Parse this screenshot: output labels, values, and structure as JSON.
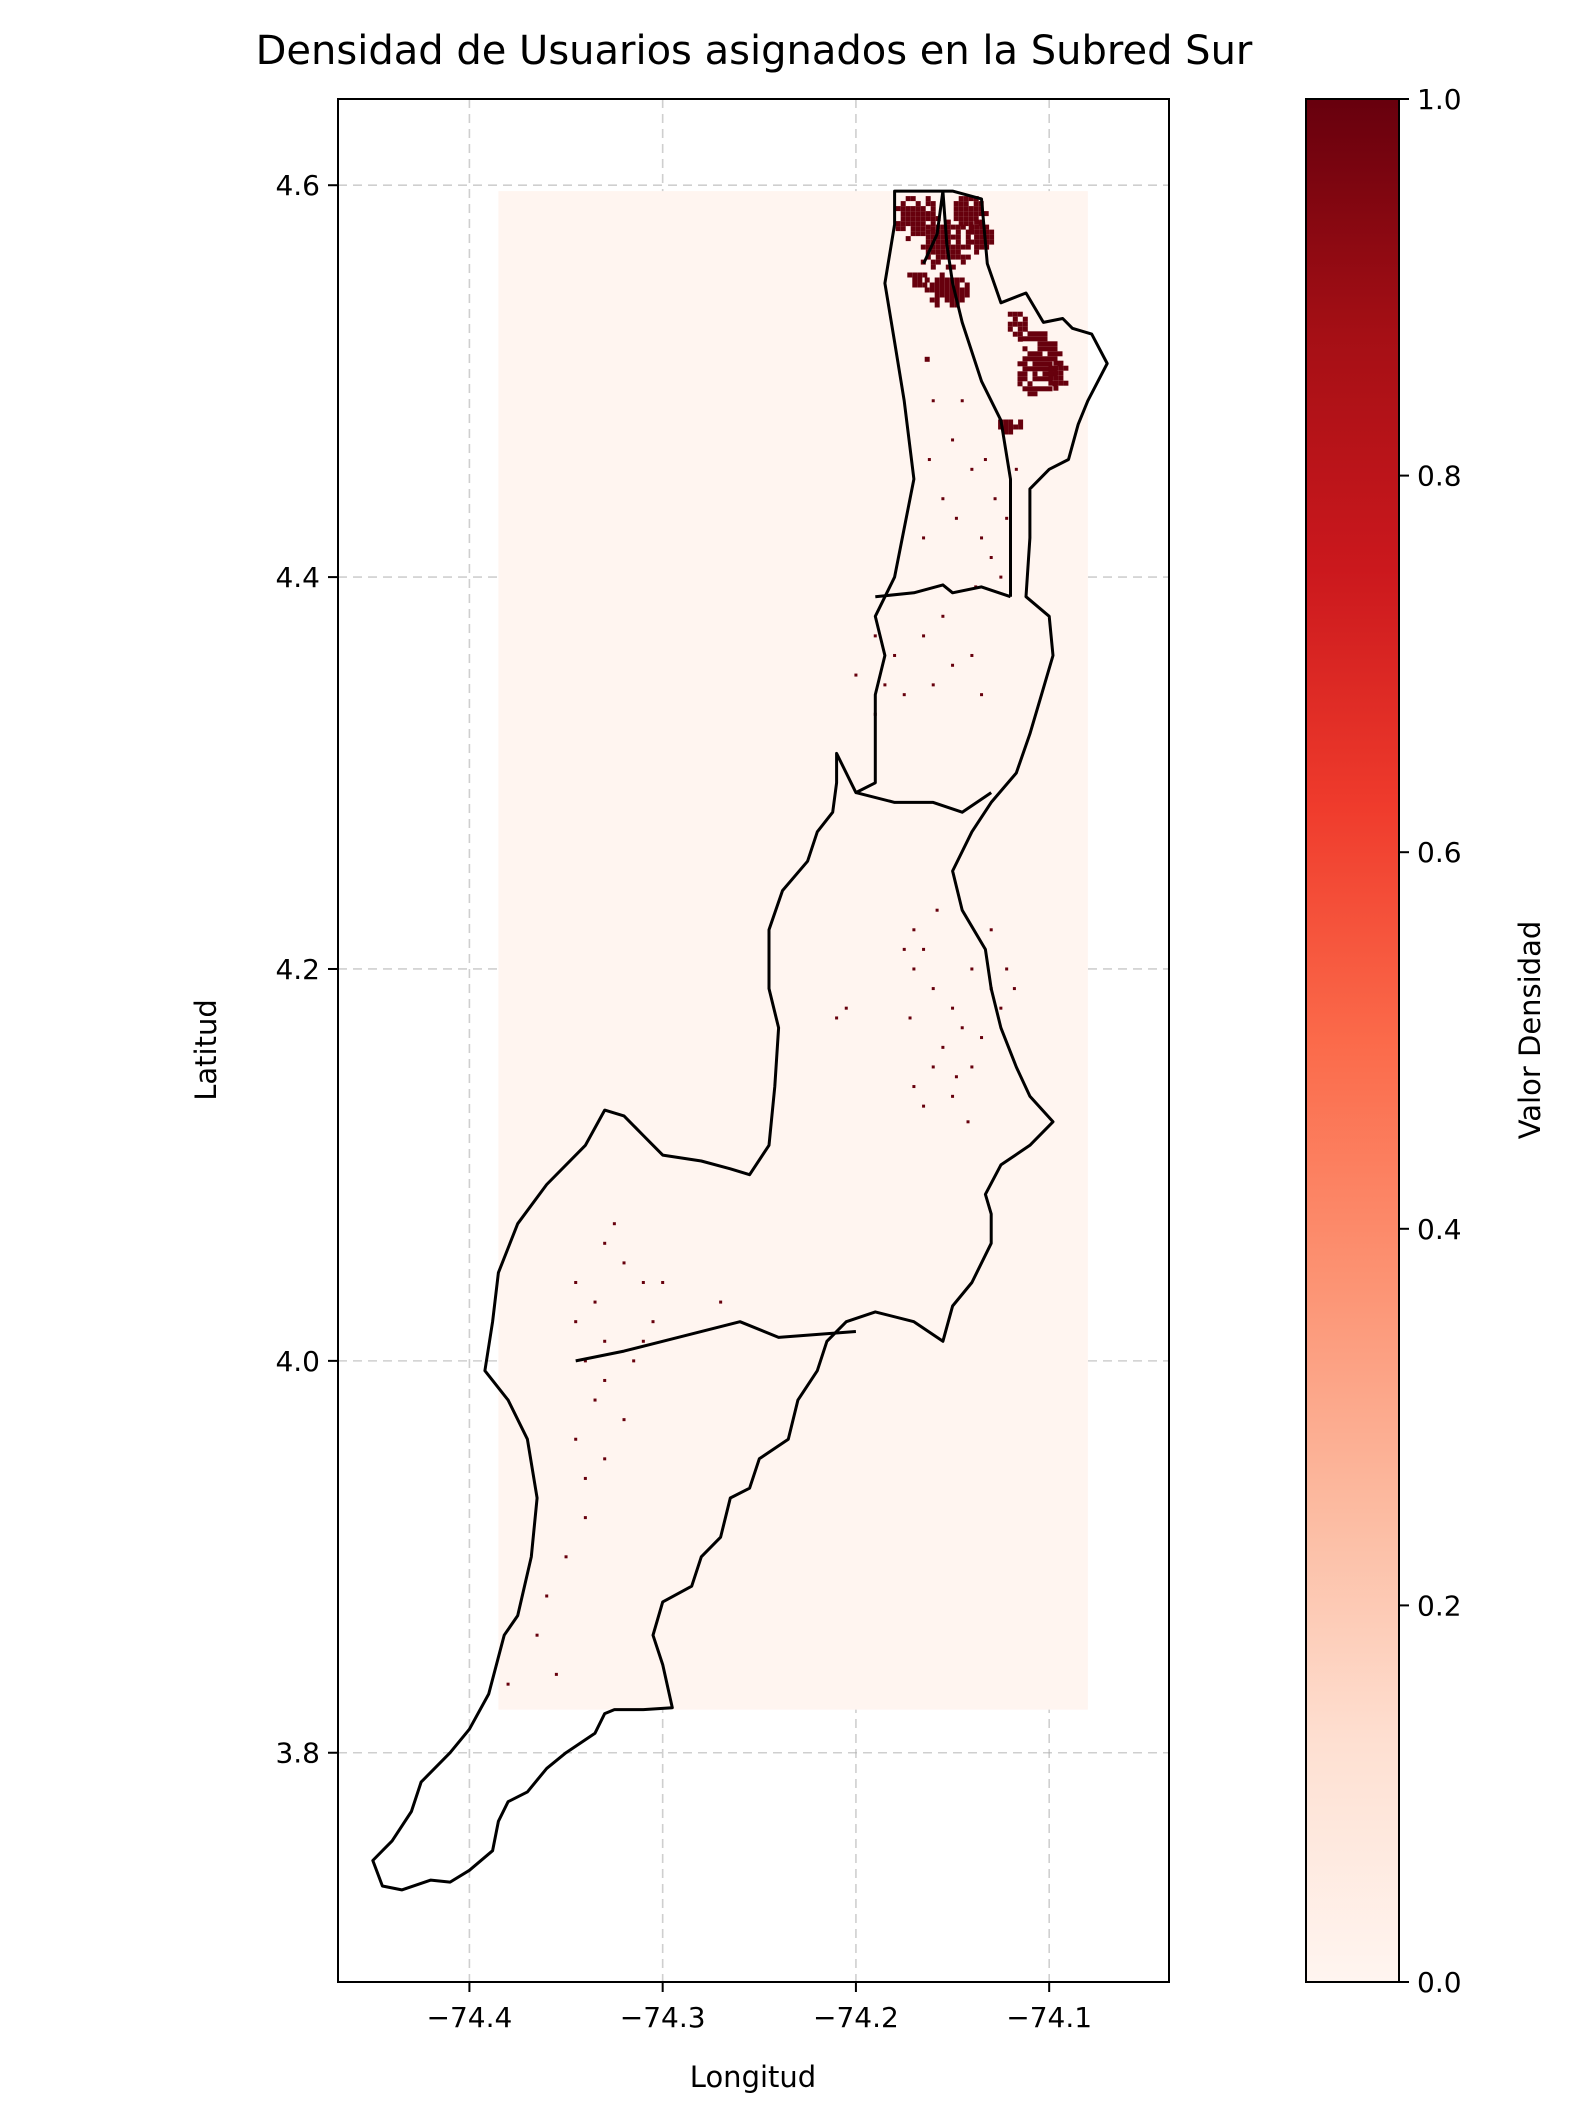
{
  "chart_data": {
    "type": "heatmap",
    "title": "Densidad de Usuarios asignados en la Subred Sur",
    "xlabel": "Longitud",
    "ylabel": "Latitud",
    "xlim": [
      -74.468,
      -74.038
    ],
    "ylim": [
      3.683,
      4.644
    ],
    "xticks": [
      -74.4,
      -74.3,
      -74.2,
      -74.1
    ],
    "xtick_labels": [
      "−74.4",
      "−74.3",
      "−74.2",
      "−74.1"
    ],
    "yticks": [
      3.8,
      4.0,
      4.2,
      4.4,
      4.6
    ],
    "ytick_labels": [
      "3.8",
      "4.0",
      "4.2",
      "4.4",
      "4.6"
    ],
    "grid": true,
    "colormap": "Reds",
    "colorbar": {
      "label": "Valor Densidad",
      "range": [
        0,
        1
      ],
      "ticks": [
        0.0,
        0.2,
        0.4,
        0.6,
        0.8,
        1.0
      ],
      "tick_labels": [
        "0.0",
        "0.2",
        "0.4",
        "0.6",
        "0.8",
        "1.0"
      ],
      "colors": [
        "#fff5f0",
        "#fee0d2",
        "#fcbba1",
        "#fc9272",
        "#fb6a4a",
        "#ef3b2c",
        "#cb181d",
        "#a50f15",
        "#67000d"
      ]
    },
    "raster_extent": {
      "lon": [
        -74.385,
        -74.08
      ],
      "lat": [
        3.822,
        4.597
      ]
    },
    "background_value": 0.0,
    "high_density_clusters": [
      {
        "lon": -74.17,
        "lat": 4.585,
        "r_lon": 0.012,
        "r_lat": 0.012,
        "value": 1.0
      },
      {
        "lon": -74.155,
        "lat": 4.57,
        "r_lon": 0.014,
        "r_lat": 0.015,
        "value": 1.0
      },
      {
        "lon": -74.142,
        "lat": 4.588,
        "r_lon": 0.01,
        "r_lat": 0.009,
        "value": 1.0
      },
      {
        "lon": -74.137,
        "lat": 4.575,
        "r_lon": 0.007,
        "r_lat": 0.01,
        "value": 1.0
      },
      {
        "lon": -74.155,
        "lat": 4.548,
        "r_lon": 0.012,
        "r_lat": 0.01,
        "value": 1.0
      },
      {
        "lon": -74.17,
        "lat": 4.553,
        "r_lon": 0.006,
        "r_lat": 0.005,
        "value": 1.0
      },
      {
        "lon": -74.107,
        "lat": 4.51,
        "r_lon": 0.012,
        "r_lat": 0.018,
        "value": 1.0
      },
      {
        "lon": -74.118,
        "lat": 4.53,
        "r_lon": 0.006,
        "r_lat": 0.008,
        "value": 1.0
      },
      {
        "lon": -74.097,
        "lat": 4.505,
        "r_lon": 0.006,
        "r_lat": 0.008,
        "value": 1.0
      },
      {
        "lon": -74.122,
        "lat": 4.478,
        "r_lon": 0.007,
        "r_lat": 0.005,
        "value": 1.0
      },
      {
        "lon": -74.163,
        "lat": 4.512,
        "r_lon": 0.004,
        "r_lat": 0.003,
        "value": 1.0
      }
    ],
    "scattered_points": [
      [
        -74.145,
        4.49
      ],
      [
        -74.15,
        4.47
      ],
      [
        -74.14,
        4.455
      ],
      [
        -74.155,
        4.44
      ],
      [
        -74.162,
        4.46
      ],
      [
        -74.133,
        4.46
      ],
      [
        -74.128,
        4.44
      ],
      [
        -74.135,
        4.42
      ],
      [
        -74.148,
        4.43
      ],
      [
        -74.165,
        4.42
      ],
      [
        -74.13,
        4.41
      ],
      [
        -74.122,
        4.43
      ],
      [
        -74.16,
        4.49
      ],
      [
        -74.117,
        4.455
      ],
      [
        -74.138,
        4.395
      ],
      [
        -74.125,
        4.4
      ],
      [
        -74.19,
        4.37
      ],
      [
        -74.18,
        4.36
      ],
      [
        -74.175,
        4.34
      ],
      [
        -74.2,
        4.35
      ],
      [
        -74.16,
        4.345
      ],
      [
        -74.15,
        4.355
      ],
      [
        -74.135,
        4.34
      ],
      [
        -74.19,
        4.33
      ],
      [
        -74.165,
        4.37
      ],
      [
        -74.14,
        4.36
      ],
      [
        -74.155,
        4.38
      ],
      [
        -74.185,
        4.345
      ],
      [
        -74.17,
        4.2
      ],
      [
        -74.16,
        4.19
      ],
      [
        -74.165,
        4.21
      ],
      [
        -74.15,
        4.18
      ],
      [
        -74.14,
        4.2
      ],
      [
        -74.13,
        4.19
      ],
      [
        -74.145,
        4.17
      ],
      [
        -74.155,
        4.16
      ],
      [
        -74.16,
        4.15
      ],
      [
        -74.17,
        4.14
      ],
      [
        -74.135,
        4.165
      ],
      [
        -74.125,
        4.18
      ],
      [
        -74.14,
        4.15
      ],
      [
        -74.15,
        4.135
      ],
      [
        -74.165,
        4.13
      ],
      [
        -74.175,
        4.21
      ],
      [
        -74.172,
        4.175
      ],
      [
        -74.122,
        4.2
      ],
      [
        -74.118,
        4.19
      ],
      [
        -74.13,
        4.22
      ],
      [
        -74.205,
        4.18
      ],
      [
        -74.21,
        4.175
      ],
      [
        -74.17,
        4.22
      ],
      [
        -74.142,
        4.122
      ],
      [
        -74.148,
        4.145
      ],
      [
        -74.158,
        4.23
      ],
      [
        -74.345,
        4.02
      ],
      [
        -74.34,
        4.0
      ],
      [
        -74.33,
        3.99
      ],
      [
        -74.335,
        3.98
      ],
      [
        -74.345,
        3.96
      ],
      [
        -74.33,
        3.95
      ],
      [
        -74.34,
        3.94
      ],
      [
        -74.32,
        3.97
      ],
      [
        -74.335,
        4.03
      ],
      [
        -74.31,
        4.01
      ],
      [
        -74.305,
        4.02
      ],
      [
        -74.3,
        4.04
      ],
      [
        -74.31,
        4.04
      ],
      [
        -74.33,
        4.06
      ],
      [
        -74.345,
        4.04
      ],
      [
        -74.32,
        4.05
      ],
      [
        -74.27,
        4.03
      ],
      [
        -74.34,
        3.92
      ],
      [
        -74.35,
        3.9
      ],
      [
        -74.36,
        3.88
      ],
      [
        -74.365,
        3.86
      ],
      [
        -74.355,
        3.84
      ],
      [
        -74.38,
        3.835
      ],
      [
        -74.325,
        4.07
      ],
      [
        -74.315,
        4.0
      ],
      [
        -74.33,
        4.01
      ]
    ]
  }
}
